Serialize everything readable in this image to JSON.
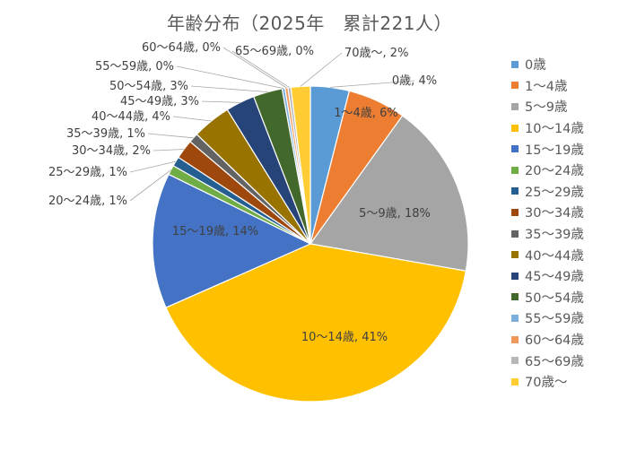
{
  "chart_data": {
    "type": "pie",
    "title": "年齢分布（2025年　累計221人）",
    "legend_position": "right",
    "categories": [
      "0歳",
      "1～4歳",
      "5～9歳",
      "10～14歳",
      "15～19歳",
      "20～24歳",
      "25～29歳",
      "30～34歳",
      "35～39歳",
      "40～44歳",
      "45～49歳",
      "50～54歳",
      "55～59歳",
      "60～64歳",
      "65～69歳",
      "70歳～"
    ],
    "values": [
      4,
      6,
      18,
      41,
      14,
      1,
      1,
      2,
      1,
      4,
      3,
      3,
      0,
      0,
      0,
      2
    ],
    "unit": "%",
    "data_labels": [
      "0歳, 4%",
      "1～4歳, 6%",
      "5～9歳, 18%",
      "10～14歳, 41%",
      "15～19歳, 14%",
      "20～24歳, 1%",
      "25～29歳, 1%",
      "30～34歳, 2%",
      "35～39歳, 1%",
      "40～44歳, 4%",
      "45～49歳, 3%",
      "50～54歳, 3%",
      "55～59歳, 0%",
      "60～64歳, 0%",
      "65～69歳, 0%",
      "70歳～, 2%"
    ],
    "colors": [
      "#5B9BD5",
      "#ED7D31",
      "#A5A5A5",
      "#FFC000",
      "#4472C4",
      "#70AD47",
      "#255E91",
      "#9E480E",
      "#636363",
      "#997300",
      "#264478",
      "#43682B",
      "#7CAFDD",
      "#F1975A",
      "#B7B7B7",
      "#FFCD33"
    ]
  }
}
